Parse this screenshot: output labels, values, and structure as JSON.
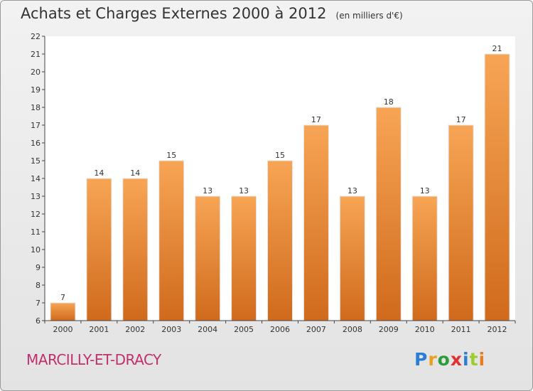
{
  "title": "Achats et Charges Externes 2000 à 2012",
  "unit": "(en milliers d'€)",
  "commune": "MARCILLY-ET-DRACY",
  "logo": {
    "letters": [
      "P",
      "r",
      "o",
      "x",
      "i",
      "t",
      "i"
    ],
    "colors": [
      "#2a7fd4",
      "#e8a020",
      "#2a9d3a",
      "#e03030",
      "#2a7fd4",
      "#9bcd2c",
      "#e87d1e"
    ]
  },
  "chart_data": {
    "type": "bar",
    "categories": [
      "2000",
      "2001",
      "2002",
      "2003",
      "2004",
      "2005",
      "2006",
      "2007",
      "2008",
      "2009",
      "2010",
      "2011",
      "2012"
    ],
    "values": [
      7,
      14,
      14,
      15,
      13,
      13,
      15,
      17,
      13,
      18,
      13,
      17,
      21
    ],
    "ylim": [
      6,
      22
    ],
    "yticks": [
      6,
      7,
      8,
      9,
      10,
      11,
      12,
      13,
      14,
      15,
      16,
      17,
      18,
      19,
      20,
      21,
      22
    ],
    "grid": false,
    "bar_color": "#f0943c"
  }
}
